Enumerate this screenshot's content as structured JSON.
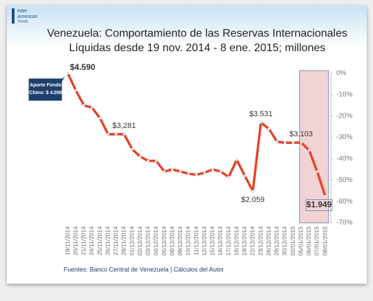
{
  "logo": [
    "Inter",
    "American",
    "Trends"
  ],
  "chart_data": {
    "type": "line",
    "title": [
      "Venezuela: Comportamiento de las Reservas Internacionales",
      "Líquidas desde 19 nov. 2014 - 8 ene. 2015; millones"
    ],
    "categories": [
      "19/11/2014",
      "20/11/2014",
      "21/11/2014",
      "24/11/2014",
      "25/11/2014",
      "26/11/2014",
      "27/11/2014",
      "28/11/2014",
      "01/12/2014",
      "02/12/2014",
      "03/12/2014",
      "04/12/2014",
      "05/12/2014",
      "08/12/2014",
      "09/12/2014",
      "10/12/2014",
      "11/12/2014",
      "12/12/2014",
      "15/12/2014",
      "16/12/2014",
      "17/12/2014",
      "18/12/2014",
      "19/12/2014",
      "22/12/2014",
      "23/12/2014",
      "26/12/2014",
      "29/12/2014",
      "30/12/2014",
      "02/01/2015",
      "05/01/2015",
      "06/01/2015",
      "07/01/2015",
      "08/01/2015"
    ],
    "values": [
      0,
      -8,
      -15,
      -16,
      -21,
      -28.5,
      -28.5,
      -28.5,
      -35.5,
      -39,
      -41,
      -41,
      -46,
      -45,
      -46,
      -47,
      -47.5,
      -46.5,
      -45,
      -46,
      -48.5,
      -40.5,
      -48,
      -55.1,
      -23.1,
      -26,
      -32,
      -32.5,
      -32.5,
      -32.4,
      -36,
      -46,
      -57.5
    ],
    "color": "#e2452b",
    "axis_side": "right",
    "ylim": [
      -70,
      0
    ],
    "yticks": [
      {
        "value": 0,
        "label": "0%"
      },
      {
        "value": -10,
        "label": "-10%"
      },
      {
        "value": -20,
        "label": "-20%"
      },
      {
        "value": -30,
        "label": "-30%"
      },
      {
        "value": -40,
        "label": "-40%"
      },
      {
        "value": -50,
        "label": "-50%"
      },
      {
        "value": -60,
        "label": "-60%"
      },
      {
        "value": -70,
        "label": "-70%"
      }
    ],
    "annotations": [
      {
        "x": "19/11/2014",
        "text": "$4.590",
        "position": "right",
        "bold": true
      },
      {
        "x": "28/11/2014",
        "text": "$3,281",
        "position": "above",
        "bold": false
      },
      {
        "x": "23/12/2014",
        "text": "$3.531",
        "position": "above",
        "bold": false
      },
      {
        "x": "22/12/2014",
        "text": "$2.059",
        "position": "below",
        "bold": false
      },
      {
        "x": "05/01/2015",
        "text": "$3.103",
        "position": "above",
        "bold": false
      },
      {
        "x": "08/01/2015",
        "text": "$1.949",
        "position": "below",
        "bold": true
      }
    ],
    "callout": {
      "x": "19/11/2014",
      "lines": [
        "Aporte Fondo",
        "Chino: $ 4.000"
      ]
    },
    "highlight": {
      "from": "05/01/2015",
      "to": "08/01/2015",
      "color": "#f2d3d3"
    },
    "source": "Fuentes: Banco Central de Venezuela | Cálculos del Autor"
  }
}
